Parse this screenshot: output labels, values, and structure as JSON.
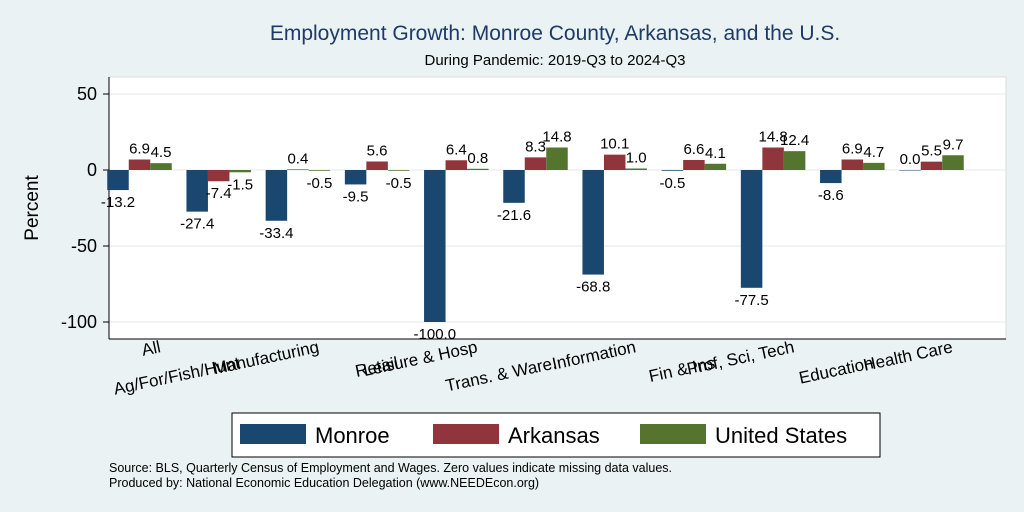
{
  "chart_data": {
    "type": "bar",
    "title": "Employment Growth: Monroe County, Arkansas, and the U.S.",
    "subtitle": "During Pandemic: 2019-Q3 to 2024-Q3",
    "ylabel": "Percent",
    "xlabel": "",
    "ylim": [
      -110,
      60
    ],
    "yticks": [
      50,
      0,
      -50,
      -100
    ],
    "grid": true,
    "legend_position": "bottom",
    "categories": [
      "All",
      "Ag/For/Fish/Hunt",
      "Manufacturing",
      "Retail",
      "Leisure & Hosp",
      "Trans. & Ware.",
      "Information",
      "Fin & Ins",
      "Prof, Sci, Tech",
      "Education",
      "Health Care"
    ],
    "series": [
      {
        "name": "Monroe",
        "color": "#1a476f",
        "values": [
          -13.2,
          -27.4,
          -33.4,
          -9.5,
          -100.0,
          -21.6,
          -68.8,
          -0.5,
          -77.5,
          -8.6,
          0.0
        ],
        "labels": [
          "-13.2",
          "-27.4",
          "-33.4",
          "-9.5",
          "-100.0",
          "-21.6",
          "-68.8",
          "-0.5",
          "-77.5",
          "-8.6",
          "0.0"
        ]
      },
      {
        "name": "Arkansas",
        "color": "#90353b",
        "values": [
          6.9,
          -7.4,
          0.4,
          5.6,
          6.4,
          8.3,
          10.1,
          6.6,
          14.8,
          6.9,
          5.5
        ],
        "labels": [
          "6.9",
          "-7.4",
          "0.4",
          "5.6",
          "6.4",
          "8.3",
          "10.1",
          "6.6",
          "14.8",
          "6.9",
          "5.5"
        ]
      },
      {
        "name": "United States",
        "color": "#55752f",
        "values": [
          4.5,
          -1.5,
          -0.5,
          -0.5,
          0.8,
          14.8,
          1.0,
          4.1,
          12.4,
          4.7,
          9.7
        ],
        "labels": [
          "4.5",
          "-1.5",
          "-0.5",
          "-0.5",
          "0.8",
          "14.8",
          "1.0",
          "4.1",
          "12.4",
          "4.7",
          "9.7"
        ]
      }
    ]
  },
  "footer": {
    "source": "Source: BLS, Quarterly Census of Employment and Wages. Zero values indicate missing data values.",
    "produced": "Produced by: National Economic Education Delegation (www.NEEDEcon.org)"
  },
  "colors": {
    "background": "#eaf2f3",
    "plot_background": "#ffffff",
    "title": "#1e3a66"
  }
}
